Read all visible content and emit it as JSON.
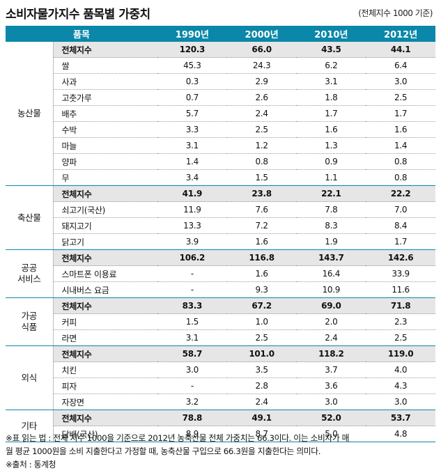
{
  "title": "소비자물가지수 품목별 가중치",
  "note": "(전체지수 1000 기준)",
  "columns": [
    "품목",
    "1990년",
    "2000년",
    "2010년",
    "2012년"
  ],
  "groups": [
    {
      "name": "농산물",
      "rows": [
        {
          "item": "전체지수",
          "total": true,
          "values": [
            "120.3",
            "66.0",
            "43.5",
            "44.1"
          ]
        },
        {
          "item": "쌀",
          "values": [
            "45.3",
            "24.3",
            "6.2",
            "6.4"
          ]
        },
        {
          "item": "사과",
          "values": [
            "0.3",
            "2.9",
            "3.1",
            "3.0"
          ]
        },
        {
          "item": "고춧가루",
          "values": [
            "0.7",
            "2.6",
            "1.8",
            "2.5"
          ]
        },
        {
          "item": "배추",
          "values": [
            "5.7",
            "2.4",
            "1.7",
            "1.7"
          ]
        },
        {
          "item": "수박",
          "values": [
            "3.3",
            "2.5",
            "1.6",
            "1.6"
          ]
        },
        {
          "item": "마늘",
          "values": [
            "3.1",
            "1.2",
            "1.3",
            "1.4"
          ]
        },
        {
          "item": "양파",
          "values": [
            "1.4",
            "0.8",
            "0.9",
            "0.8"
          ]
        },
        {
          "item": "무",
          "values": [
            "3.4",
            "1.5",
            "1.1",
            "0.8"
          ]
        }
      ]
    },
    {
      "name": "축산물",
      "rows": [
        {
          "item": "전체지수",
          "total": true,
          "values": [
            "41.9",
            "23.8",
            "22.1",
            "22.2"
          ]
        },
        {
          "item": "쇠고기(국산)",
          "values": [
            "11.9",
            "7.6",
            "7.8",
            "7.0"
          ]
        },
        {
          "item": "돼지고기",
          "values": [
            "13.3",
            "7.2",
            "8.3",
            "8.4"
          ]
        },
        {
          "item": "닭고기",
          "values": [
            "3.9",
            "1.6",
            "1.9",
            "1.7"
          ]
        }
      ]
    },
    {
      "name": "공공\n서비스",
      "rows": [
        {
          "item": "전체지수",
          "total": true,
          "values": [
            "106.2",
            "116.8",
            "143.7",
            "142.6"
          ]
        },
        {
          "item": "스마트폰 이용료",
          "values": [
            "-",
            "1.6",
            "16.4",
            "33.9"
          ]
        },
        {
          "item": "시내버스 요금",
          "values": [
            "-",
            "9.3",
            "10.9",
            "11.6"
          ]
        }
      ]
    },
    {
      "name": "가공\n식품",
      "rows": [
        {
          "item": "전체지수",
          "total": true,
          "values": [
            "83.3",
            "67.2",
            "69.0",
            "71.8"
          ]
        },
        {
          "item": "커피",
          "values": [
            "1.5",
            "1.0",
            "2.0",
            "2.3"
          ]
        },
        {
          "item": "라면",
          "values": [
            "3.1",
            "2.5",
            "2.4",
            "2.5"
          ]
        }
      ]
    },
    {
      "name": "외식",
      "rows": [
        {
          "item": "전체지수",
          "total": true,
          "values": [
            "58.7",
            "101.0",
            "118.2",
            "119.0"
          ]
        },
        {
          "item": "치킨",
          "values": [
            "3.0",
            "3.5",
            "3.7",
            "4.0"
          ]
        },
        {
          "item": "피자",
          "values": [
            "-",
            "2.8",
            "3.6",
            "4.3"
          ]
        },
        {
          "item": "자장면",
          "values": [
            "3.2",
            "2.4",
            "3.0",
            "3.0"
          ]
        }
      ]
    },
    {
      "name": "기타",
      "rows": [
        {
          "item": "전체지수",
          "total": true,
          "values": [
            "78.8",
            "49.1",
            "52.0",
            "53.7"
          ]
        },
        {
          "item": "담배(국산)",
          "values": [
            "8.9",
            "8.7",
            "5.0",
            "4.8"
          ]
        }
      ]
    }
  ],
  "footnote_1": "※표 읽는 법 : 전체 지수 1000을 기준으로 2012년 농축산물 전체 가중치는 66.3이다. 이는 소비자가 매",
  "footnote_2": "월 평균 1000원을 소비 지출한다고 가정할 때, 농축산물 구입으로 66.3원을 지출한다는 의미다.",
  "source": "※출처 : 통계청"
}
